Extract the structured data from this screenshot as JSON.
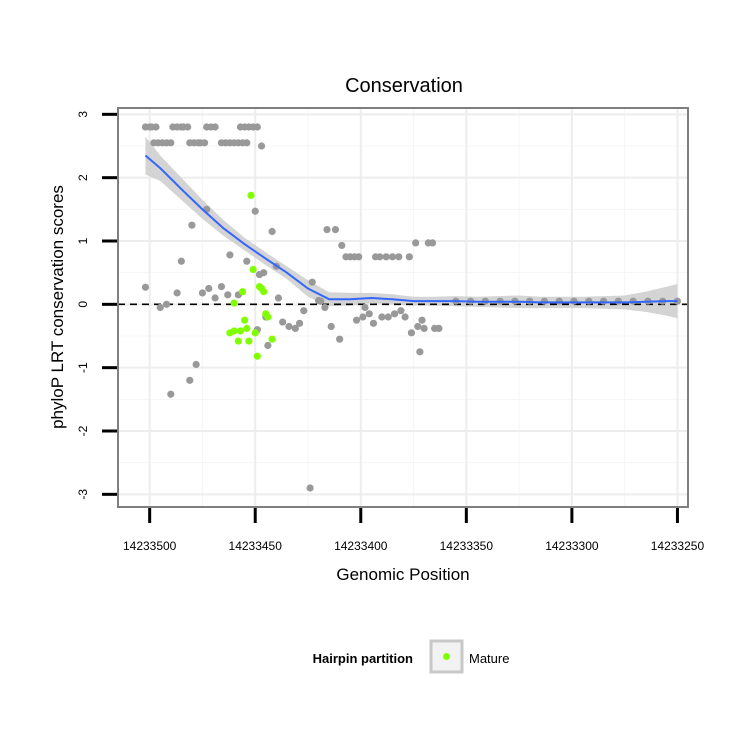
{
  "chart_data": {
    "type": "scatter",
    "title": "Conservation",
    "xlabel": "Genomic Position",
    "ylabel": "phyloP LRT conservation scores",
    "xlim": [
      14233515,
      14233245
    ],
    "x_reversed": true,
    "ylim": [
      -3.2,
      3.1
    ],
    "x_ticks": [
      14233500,
      14233450,
      14233400,
      14233350,
      14233300,
      14233250
    ],
    "y_ticks": [
      -3,
      -2,
      -1,
      0,
      1,
      2,
      3
    ],
    "grid": true,
    "reference_line": {
      "y": 0,
      "style": "dashed"
    },
    "legend": {
      "title": "Hairpin partition",
      "position": "bottom",
      "entries": [
        {
          "label": "Mature",
          "color": "#7fff00"
        }
      ]
    },
    "colors": {
      "other": "#999999",
      "mature": "#7fff00",
      "smooth_line": "#3366ff",
      "ribbon": "#cccccc"
    },
    "series": [
      {
        "name": "Other",
        "points": [
          [
            14233502,
            2.8
          ],
          [
            14233500,
            2.8
          ],
          [
            14233499,
            2.8
          ],
          [
            14233497,
            2.8
          ],
          [
            14233498,
            2.55
          ],
          [
            14233496,
            2.55
          ],
          [
            14233494,
            2.55
          ],
          [
            14233492,
            2.55
          ],
          [
            14233490,
            2.55
          ],
          [
            14233489,
            2.8
          ],
          [
            14233487,
            2.8
          ],
          [
            14233485,
            2.8
          ],
          [
            14233484,
            2.8
          ],
          [
            14233482,
            2.8
          ],
          [
            14233481,
            2.55
          ],
          [
            14233479,
            2.55
          ],
          [
            14233477,
            2.55
          ],
          [
            14233476,
            2.55
          ],
          [
            14233474,
            2.55
          ],
          [
            14233473,
            2.8
          ],
          [
            14233471,
            2.8
          ],
          [
            14233469,
            2.8
          ],
          [
            14233466,
            2.55
          ],
          [
            14233464,
            2.55
          ],
          [
            14233462,
            2.55
          ],
          [
            14233460,
            2.55
          ],
          [
            14233458,
            2.55
          ],
          [
            14233456,
            2.55
          ],
          [
            14233454,
            2.55
          ],
          [
            14233457,
            2.8
          ],
          [
            14233455,
            2.8
          ],
          [
            14233453,
            2.8
          ],
          [
            14233451,
            2.8
          ],
          [
            14233449,
            2.8
          ],
          [
            14233447,
            2.5
          ],
          [
            14233502,
            0.27
          ],
          [
            14233495,
            -0.05
          ],
          [
            14233492,
            0.0
          ],
          [
            14233490,
            -1.42
          ],
          [
            14233487,
            0.18
          ],
          [
            14233485,
            0.68
          ],
          [
            14233481,
            -1.2
          ],
          [
            14233480,
            1.25
          ],
          [
            14233478,
            -0.95
          ],
          [
            14233475,
            0.18
          ],
          [
            14233473,
            1.5
          ],
          [
            14233472,
            0.25
          ],
          [
            14233469,
            0.1
          ],
          [
            14233466,
            0.28
          ],
          [
            14233463,
            0.15
          ],
          [
            14233462,
            0.78
          ],
          [
            14233458,
            0.15
          ],
          [
            14233454,
            0.68
          ],
          [
            14233450,
            1.47
          ],
          [
            14233449,
            -0.4
          ],
          [
            14233448,
            0.47
          ],
          [
            14233446,
            0.5
          ],
          [
            14233445,
            -0.2
          ],
          [
            14233444,
            -0.65
          ],
          [
            14233442,
            1.15
          ],
          [
            14233440,
            0.6
          ],
          [
            14233439,
            0.1
          ],
          [
            14233437,
            -0.28
          ],
          [
            14233434,
            -0.35
          ],
          [
            14233431,
            -0.38
          ],
          [
            14233429,
            -0.3
          ],
          [
            14233427,
            -0.1
          ],
          [
            14233424,
            -2.9
          ],
          [
            14233423,
            0.35
          ],
          [
            14233420,
            0.06
          ],
          [
            14233419,
            0.05
          ],
          [
            14233417,
            -0.05
          ],
          [
            14233416,
            1.18
          ],
          [
            14233414,
            -0.35
          ],
          [
            14233412,
            1.18
          ],
          [
            14233410,
            -0.55
          ],
          [
            14233409,
            0.93
          ],
          [
            14233407,
            0.75
          ],
          [
            14233405,
            0.75
          ],
          [
            14233403,
            0.75
          ],
          [
            14233402,
            -0.25
          ],
          [
            14233401,
            0.75
          ],
          [
            14233399,
            -0.2
          ],
          [
            14233398,
            -0.05
          ],
          [
            14233396,
            -0.15
          ],
          [
            14233394,
            -0.3
          ],
          [
            14233393,
            0.75
          ],
          [
            14233391,
            0.75
          ],
          [
            14233390,
            -0.2
          ],
          [
            14233388,
            0.75
          ],
          [
            14233387,
            -0.2
          ],
          [
            14233385,
            0.75
          ],
          [
            14233384,
            -0.15
          ],
          [
            14233382,
            0.75
          ],
          [
            14233381,
            -0.1
          ],
          [
            14233379,
            -0.2
          ],
          [
            14233377,
            0.75
          ],
          [
            14233376,
            -0.45
          ],
          [
            14233374,
            0.97
          ],
          [
            14233373,
            -0.35
          ],
          [
            14233372,
            -0.75
          ],
          [
            14233371,
            -0.25
          ],
          [
            14233370,
            -0.38
          ],
          [
            14233368,
            0.97
          ],
          [
            14233366,
            0.97
          ],
          [
            14233365,
            -0.38
          ],
          [
            14233363,
            -0.38
          ],
          [
            14233250,
            0.05
          ],
          [
            14233257,
            0.05
          ],
          [
            14233264,
            0.05
          ],
          [
            14233271,
            0.05
          ],
          [
            14233278,
            0.05
          ],
          [
            14233285,
            0.05
          ],
          [
            14233292,
            0.05
          ],
          [
            14233299,
            0.05
          ],
          [
            14233306,
            0.05
          ],
          [
            14233313,
            0.05
          ],
          [
            14233320,
            0.05
          ],
          [
            14233327,
            0.05
          ],
          [
            14233334,
            0.05
          ],
          [
            14233341,
            0.05
          ],
          [
            14233348,
            0.05
          ],
          [
            14233355,
            0.05
          ]
        ]
      },
      {
        "name": "Mature",
        "points": [
          [
            14233462,
            -0.45
          ],
          [
            14233460,
            -0.42
          ],
          [
            14233460,
            0.02
          ],
          [
            14233458,
            -0.58
          ],
          [
            14233457,
            -0.42
          ],
          [
            14233456,
            0.2
          ],
          [
            14233455,
            -0.25
          ],
          [
            14233454,
            -0.38
          ],
          [
            14233453,
            -0.58
          ],
          [
            14233452,
            1.72
          ],
          [
            14233451,
            0.55
          ],
          [
            14233450,
            -0.45
          ],
          [
            14233449,
            -0.82
          ],
          [
            14233448,
            0.28
          ],
          [
            14233447,
            0.25
          ],
          [
            14233446,
            0.2
          ],
          [
            14233445,
            -0.15
          ],
          [
            14233444,
            -0.2
          ],
          [
            14233442,
            -0.55
          ]
        ]
      }
    ],
    "smooth": {
      "x": [
        14233502,
        14233495,
        14233485,
        14233475,
        14233465,
        14233455,
        14233445,
        14233435,
        14233425,
        14233415,
        14233405,
        14233395,
        14233385,
        14233375,
        14233365,
        14233355,
        14233345,
        14233335,
        14233325,
        14233315,
        14233305,
        14233295,
        14233285,
        14233275,
        14233265,
        14233255,
        14233250
      ],
      "y": [
        2.35,
        2.15,
        1.82,
        1.5,
        1.2,
        0.95,
        0.72,
        0.5,
        0.25,
        0.08,
        0.08,
        0.1,
        0.08,
        0.05,
        0.05,
        0.05,
        0.04,
        0.04,
        0.04,
        0.03,
        0.03,
        0.03,
        0.03,
        0.03,
        0.04,
        0.05,
        0.05
      ],
      "lower": [
        2.05,
        1.95,
        1.65,
        1.35,
        1.08,
        0.85,
        0.62,
        0.4,
        0.12,
        -0.03,
        -0.02,
        0.02,
        0.0,
        -0.02,
        -0.02,
        -0.03,
        -0.04,
        -0.05,
        -0.06,
        -0.06,
        -0.06,
        -0.06,
        -0.07,
        -0.08,
        -0.12,
        -0.18,
        -0.22
      ],
      "upper": [
        2.65,
        2.35,
        2.0,
        1.65,
        1.33,
        1.05,
        0.82,
        0.6,
        0.38,
        0.19,
        0.18,
        0.18,
        0.16,
        0.12,
        0.12,
        0.13,
        0.12,
        0.13,
        0.14,
        0.12,
        0.12,
        0.12,
        0.13,
        0.14,
        0.2,
        0.28,
        0.32
      ]
    }
  }
}
